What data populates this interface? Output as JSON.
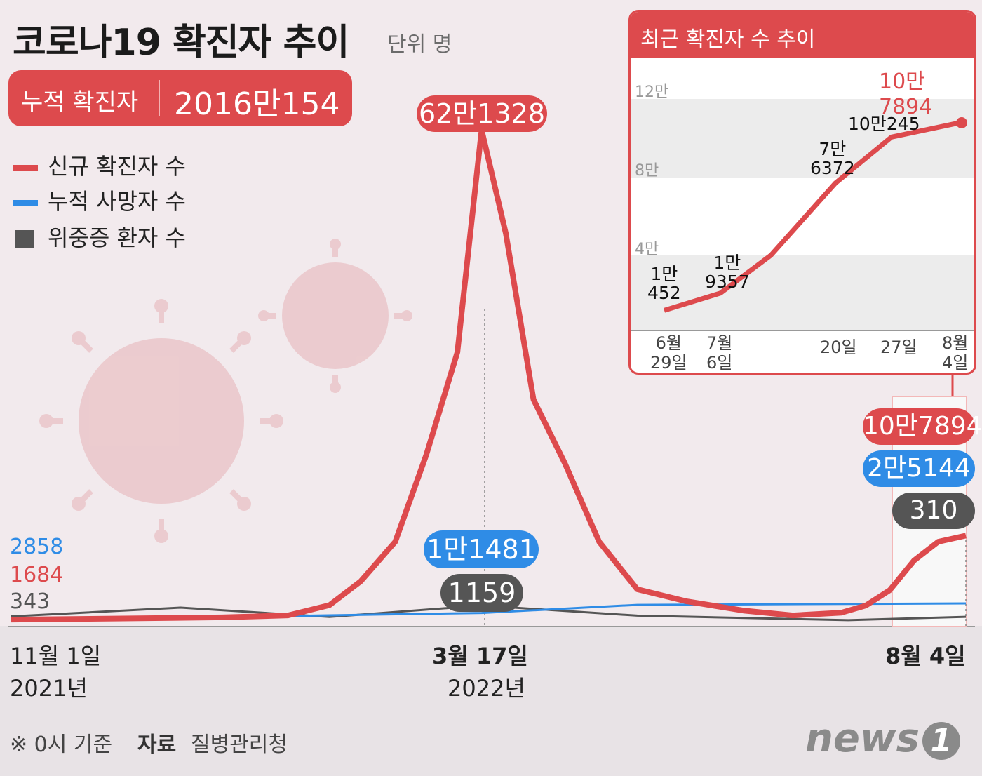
{
  "title": "코로나19 확진자 추이",
  "unit": "단위 명",
  "cumulative": {
    "label": "누적 확진자",
    "value": "2016만154"
  },
  "legend": [
    {
      "label": "신규 확진자 수",
      "color": "#dd4a4d"
    },
    {
      "label": "누적 사망자 수",
      "color": "#2f8ce6"
    },
    {
      "label": "위중증 환자 수",
      "color": "#555555"
    }
  ],
  "colors": {
    "confirmed": "#dd4a4d",
    "deaths": "#2f8ce6",
    "critical": "#555555"
  },
  "start_values": {
    "deaths": "2858",
    "confirmed": "1684",
    "critical": "343"
  },
  "peak_labels": {
    "confirmed": "62만1328",
    "deaths": "1만1481",
    "critical": "1159"
  },
  "end_labels": {
    "confirmed": "10만7894",
    "deaths": "2만5144",
    "critical": "310"
  },
  "x_labels": {
    "start_date": "11월 1일",
    "start_year": "2021년",
    "peak_date": "3월 17일",
    "peak_year": "2022년",
    "end_date": "8월 4일"
  },
  "inset": {
    "title": "최근 확진자 수 추이",
    "y_ticks": [
      "12만",
      "8만",
      "4만"
    ],
    "x_ticks": [
      [
        "6월",
        "29일"
      ],
      [
        "7월",
        "6일"
      ],
      [
        "20일"
      ],
      [
        "27일"
      ],
      [
        "8월",
        "4일"
      ]
    ],
    "annotations": [
      [
        "1만",
        "452"
      ],
      [
        "1만",
        "9357"
      ],
      [
        "7만",
        "6372"
      ],
      [
        "10만245"
      ],
      [
        "10만7894"
      ]
    ]
  },
  "footer": {
    "basis": "※ 0시 기준",
    "source_label": "자료",
    "source": "질병관리청"
  },
  "logo": {
    "text": "news",
    "mark": "1"
  },
  "chart_data": [
    {
      "type": "line",
      "title": "코로나19 확진자 추이",
      "x_range": [
        "2021-11-01",
        "2022-08-04"
      ],
      "series": [
        {
          "name": "신규 확진자 수",
          "x": [
            "2021-11-01",
            "2021-12-01",
            "2022-01-01",
            "2022-01-20",
            "2022-02-01",
            "2022-02-10",
            "2022-02-20",
            "2022-03-01",
            "2022-03-10",
            "2022-03-17",
            "2022-03-24",
            "2022-04-01",
            "2022-04-10",
            "2022-04-20",
            "2022-05-01",
            "2022-05-15",
            "2022-06-01",
            "2022-06-15",
            "2022-06-29",
            "2022-07-06",
            "2022-07-13",
            "2022-07-20",
            "2022-07-27",
            "2022-08-04"
          ],
          "values": [
            1684,
            3000,
            4500,
            7000,
            20000,
            50000,
            100000,
            210000,
            340000,
            621328,
            490000,
            280000,
            200000,
            100000,
            40000,
            25000,
            13000,
            7000,
            10452,
            19357,
            39000,
            76372,
            100245,
            107894
          ]
        },
        {
          "name": "누적 사망자 수",
          "x": [
            "2021-11-01",
            "2022-01-01",
            "2022-03-17",
            "2022-05-01",
            "2022-08-04"
          ],
          "values": [
            2858,
            5600,
            11481,
            23000,
            25144
          ]
        },
        {
          "name": "위중증 환자 수",
          "x": [
            "2021-11-01",
            "2021-12-20",
            "2022-02-01",
            "2022-03-17",
            "2022-05-01",
            "2022-07-01",
            "2022-08-04"
          ],
          "values": [
            343,
            1000,
            300,
            1159,
            400,
            60,
            310
          ]
        }
      ]
    },
    {
      "type": "line",
      "title": "최근 확진자 수 추이",
      "x": [
        "6월 29일",
        "7월 6일",
        "7월 13일",
        "7월 20일",
        "7월 27일",
        "8월 4일"
      ],
      "series": [
        {
          "name": "신규 확진자 수",
          "values": [
            10452,
            19357,
            39000,
            76372,
            100245,
            107894
          ]
        }
      ],
      "ylim": [
        0,
        120000
      ]
    }
  ]
}
